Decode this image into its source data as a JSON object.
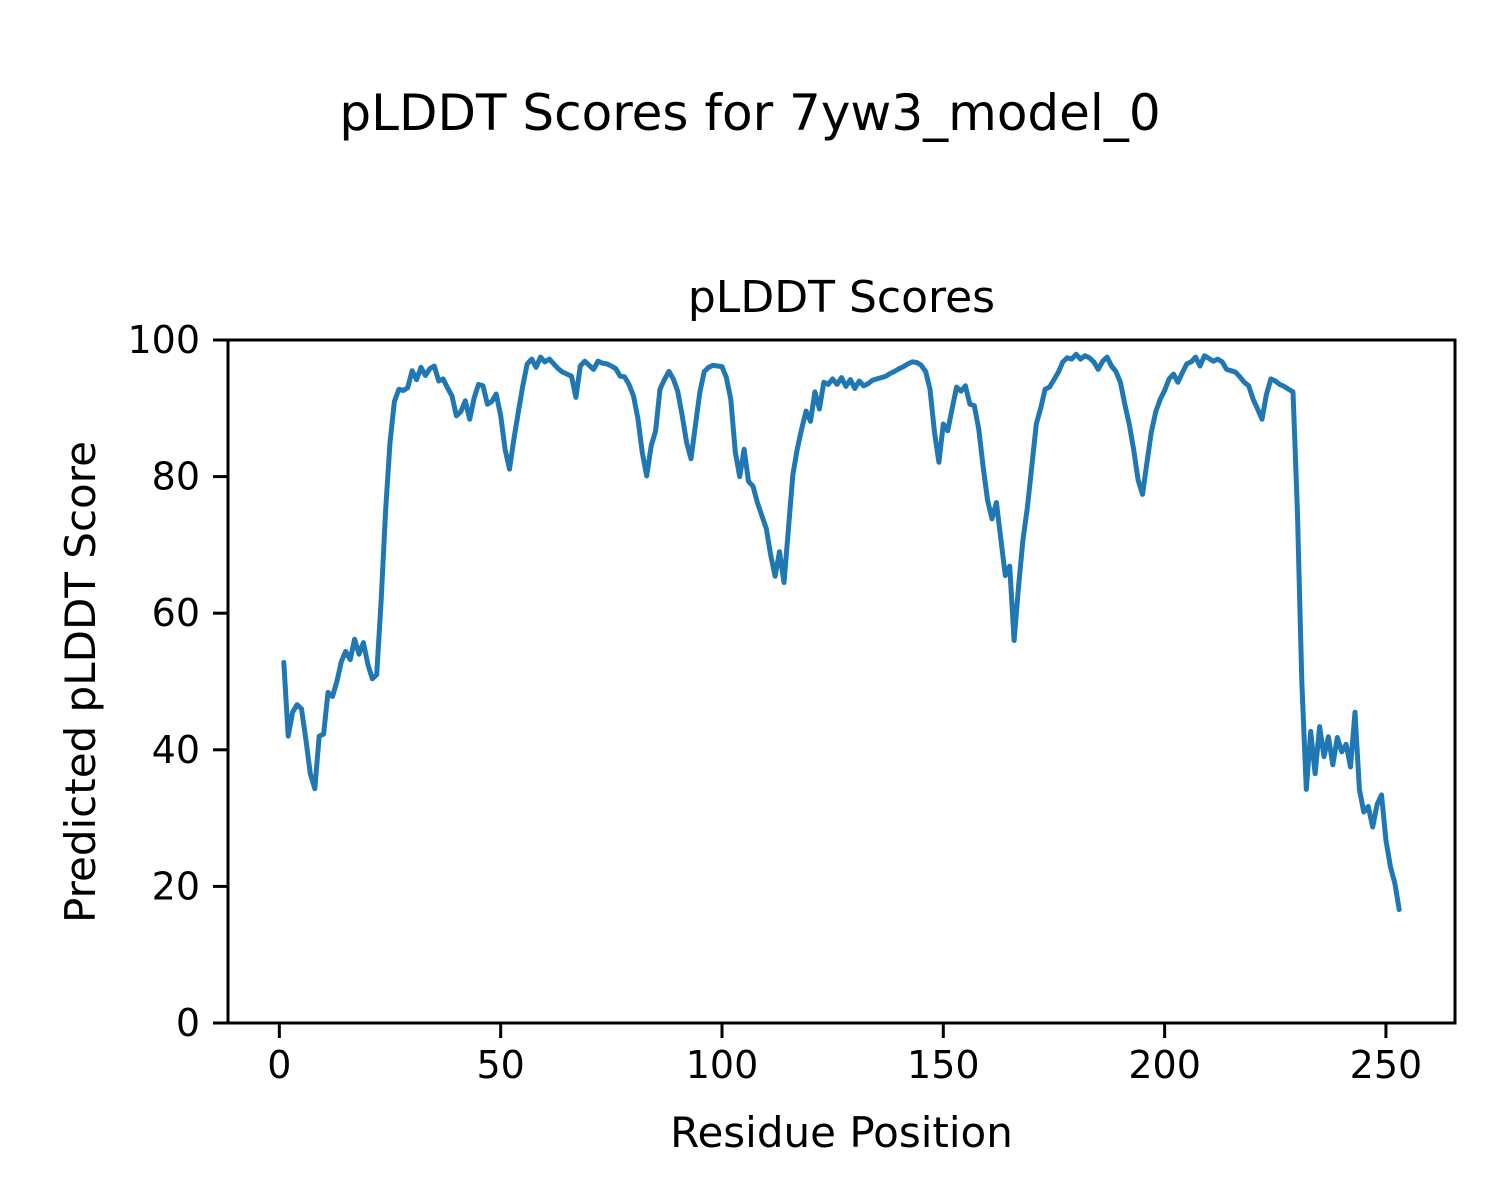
{
  "figure": {
    "background": "#ffffff",
    "text_color": "#000000"
  },
  "chart_data": {
    "type": "line",
    "suptitle": "pLDDT Scores for 7yw3_model_0",
    "title": "pLDDT Scores",
    "xlabel": "Residue Position",
    "ylabel": "Predicted pLDDT Score",
    "xlim": [
      -11.6,
      265.6
    ],
    "ylim": [
      0,
      100
    ],
    "xticks": [
      0,
      50,
      100,
      150,
      200,
      250
    ],
    "yticks": [
      0,
      20,
      40,
      60,
      80,
      100
    ],
    "grid": false,
    "legend_position": "none",
    "line_color": "#1f77b4",
    "line_width": 5,
    "spine_color": "#000000",
    "x_start": 1,
    "x_step": 1,
    "values": [
      52.8,
      42.0,
      45.5,
      46.6,
      46.0,
      41.5,
      36.5,
      34.3,
      42.0,
      42.3,
      48.4,
      47.8,
      50.0,
      52.9,
      54.4,
      53.2,
      56.2,
      54.0,
      55.7,
      52.5,
      50.4,
      51.0,
      62.0,
      75.0,
      85.0,
      91.0,
      92.8,
      92.6,
      93.0,
      95.5,
      94.2,
      96.0,
      94.8,
      95.8,
      96.2,
      94.0,
      94.3,
      93.0,
      91.8,
      88.9,
      89.5,
      91.1,
      88.4,
      91.5,
      93.5,
      93.3,
      90.6,
      91.0,
      92.1,
      88.9,
      84.0,
      81.1,
      85.5,
      89.5,
      93.3,
      96.5,
      97.2,
      96.0,
      97.5,
      96.8,
      97.2,
      96.5,
      95.8,
      95.3,
      95.0,
      94.7,
      91.6,
      96.2,
      96.9,
      96.3,
      95.7,
      96.9,
      96.6,
      96.5,
      96.2,
      95.8,
      94.7,
      94.6,
      93.5,
      91.8,
      88.5,
      83.5,
      80.1,
      84.5,
      86.7,
      92.8,
      94.2,
      95.4,
      94.3,
      92.5,
      89.0,
      85.0,
      82.6,
      87.5,
      92.4,
      95.4,
      96.0,
      96.3,
      96.2,
      96.1,
      94.5,
      91.3,
      83.6,
      80.0,
      84.0,
      79.3,
      78.6,
      76.2,
      74.3,
      72.4,
      68.5,
      65.4,
      69.0,
      64.5,
      72.3,
      80.2,
      84.0,
      87.0,
      89.6,
      88.1,
      92.4,
      89.9,
      93.8,
      93.5,
      94.3,
      93.5,
      94.5,
      93.2,
      94.2,
      92.9,
      94.0,
      93.3,
      93.6,
      94.1,
      94.3,
      94.5,
      94.7,
      95.1,
      95.4,
      95.8,
      96.1,
      96.5,
      96.8,
      96.7,
      96.3,
      95.4,
      92.8,
      86.5,
      82.1,
      87.7,
      86.7,
      90.0,
      93.1,
      92.5,
      93.3,
      90.6,
      90.4,
      87.0,
      81.5,
      76.5,
      73.8,
      76.2,
      70.8,
      65.5,
      66.9,
      56.0,
      64.0,
      70.8,
      75.5,
      81.5,
      87.7,
      90.0,
      92.8,
      93.1,
      94.2,
      95.3,
      96.8,
      97.4,
      97.2,
      97.9,
      97.2,
      97.7,
      97.4,
      96.8,
      95.7,
      96.9,
      97.5,
      96.2,
      95.4,
      93.8,
      90.6,
      87.7,
      84.0,
      79.5,
      77.4,
      82.0,
      86.5,
      89.5,
      91.3,
      92.6,
      94.3,
      95.0,
      93.8,
      95.2,
      96.5,
      96.8,
      97.5,
      96.2,
      97.7,
      97.3,
      96.9,
      97.2,
      96.8,
      95.7,
      95.5,
      95.3,
      94.6,
      93.8,
      93.3,
      91.3,
      89.9,
      88.4,
      92.0,
      94.3,
      94.0,
      93.5,
      93.2,
      92.8,
      92.4,
      75.0,
      50.0,
      34.2,
      42.7,
      36.5,
      43.4,
      39.0,
      41.9,
      37.8,
      41.8,
      39.7,
      40.8,
      37.5,
      45.5,
      34.2,
      30.9,
      31.7,
      28.7,
      32.0,
      33.4,
      26.8,
      22.9,
      20.5,
      16.6
    ]
  }
}
